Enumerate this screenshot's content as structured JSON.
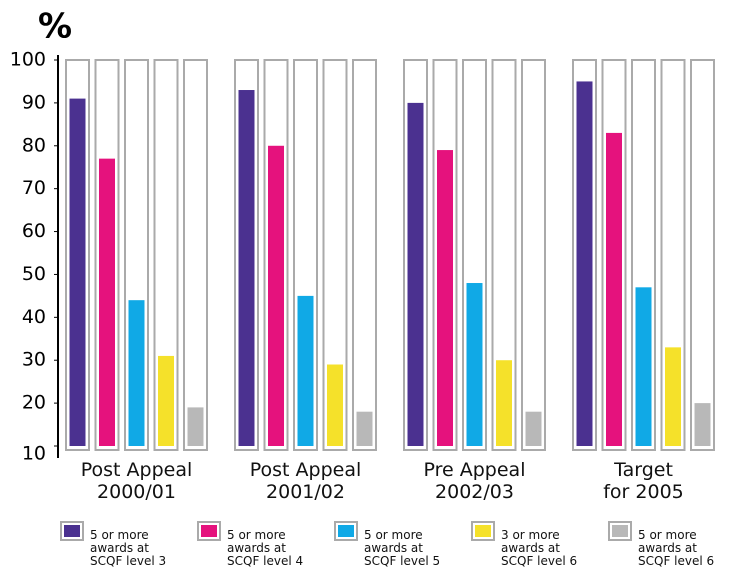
{
  "chart_data": {
    "type": "bar",
    "ylabel": "%",
    "categories": [
      "Post Appeal\n2000/01",
      "Post Appeal\n2001/02",
      "Pre Appeal\n2002/03",
      "Target\nfor 2005"
    ],
    "series": [
      {
        "name": "5 or more\nawards at\nSCQF level 3",
        "color": "#4b3190",
        "values": [
          91,
          93,
          90,
          95
        ]
      },
      {
        "name": "5 or more\nawards at\nSCQF level 4",
        "color": "#e5127d",
        "values": [
          77,
          80,
          79,
          83
        ]
      },
      {
        "name": "5 or more\nawards at\nSCQF level 5",
        "color": "#10a9e6",
        "values": [
          44,
          45,
          48,
          47
        ]
      },
      {
        "name": "3 or more\nawards at\nSCQF level 6",
        "color": "#f5e12a",
        "values": [
          31,
          29,
          30,
          33
        ]
      },
      {
        "name": "5 or more\nawards at\nSCQF level 6",
        "color": "#b8b8b8",
        "values": [
          19,
          18,
          18,
          20
        ]
      }
    ],
    "ylim": [
      10,
      100
    ],
    "yticks": [
      10,
      20,
      30,
      40,
      50,
      60,
      70,
      80,
      90,
      100
    ],
    "grid": false
  }
}
